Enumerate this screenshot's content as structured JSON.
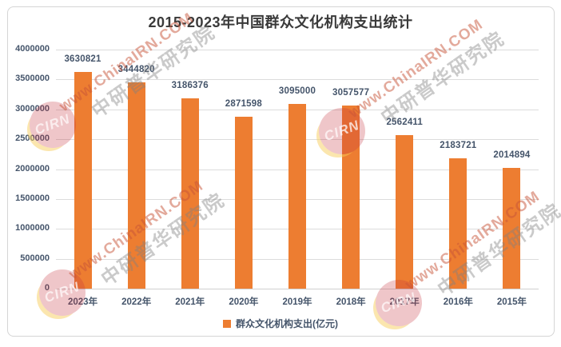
{
  "chart_data": {
    "type": "bar",
    "title": "2015-2023年中国群众文化机构支出统计",
    "categories": [
      "2023年",
      "2022年",
      "2021年",
      "2020年",
      "2019年",
      "2018年",
      "2017年",
      "2016年",
      "2015年"
    ],
    "values": [
      3630821,
      3444820,
      3186376,
      2871598,
      3095000,
      3057577,
      2562411,
      2183721,
      2014894
    ],
    "value_labels": [
      "3630821",
      "3444820",
      "3186376",
      "2871598",
      "3095000",
      "3057577",
      "2562411",
      "2183721",
      "2014894"
    ],
    "series_name": "群众文化机构支出(亿元)",
    "ylim": [
      0,
      4000000
    ],
    "ytick_step": 500000,
    "ytick_labels": [
      "0",
      "500000",
      "1000000",
      "1500000",
      "2000000",
      "2500000",
      "3000000",
      "3500000",
      "4000000"
    ],
    "grid": true,
    "legend_position": "bottom",
    "bar_color": "#ED7D31",
    "label_color": "#44546A"
  },
  "legend": {
    "marker_color": "#ED7D31",
    "label": "群众文化机构支出(亿元)"
  },
  "watermark": {
    "line1": "www.ChinaIRN.COM",
    "line2": "中研普华研究院",
    "logo_text": "CIRN"
  }
}
